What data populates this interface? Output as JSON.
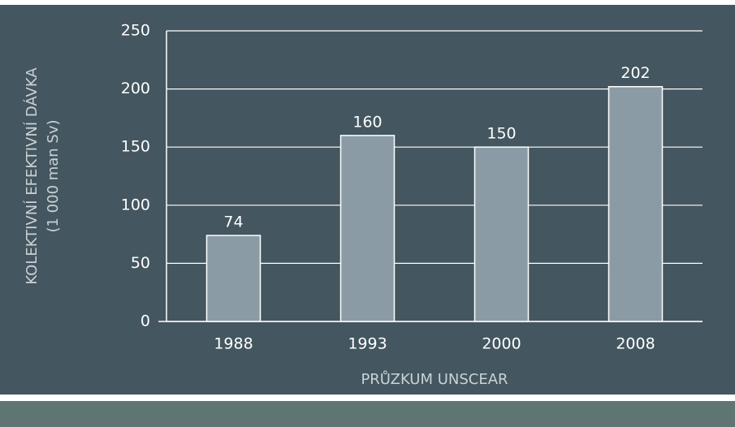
{
  "chart_data": {
    "type": "bar",
    "ylabel": [
      "KOLEKTIVNÍ EFEKTIVNÍ DÁVKA",
      "(1 000 man Sv)"
    ],
    "xlabel": "PRŮZKUM UNSCEAR",
    "categories": [
      "1988",
      "1993",
      "2000",
      "2008"
    ],
    "values": [
      74,
      160,
      150,
      202
    ],
    "color": "#8a9ba6",
    "ylim": [
      0,
      250
    ],
    "yticks": [
      0,
      50,
      100,
      150,
      200,
      250
    ],
    "grid": true
  }
}
